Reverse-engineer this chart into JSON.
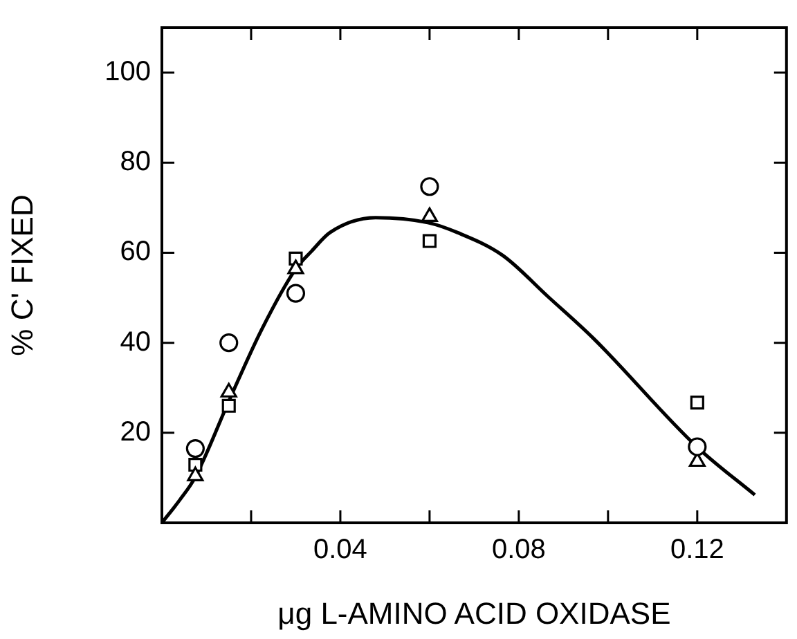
{
  "chart_data": {
    "type": "scatter",
    "xlabel": "μg L-AMINO ACID OXIDASE",
    "ylabel": "% C' FIXED",
    "xlim": [
      0,
      0.14
    ],
    "ylim": [
      0,
      110
    ],
    "xticks": [
      {
        "value": 0.02,
        "label": null
      },
      0.04,
      {
        "value": 0.06,
        "label": null
      },
      0.08,
      {
        "value": 0.1,
        "label": null
      },
      0.12
    ],
    "yticks": [
      20,
      40,
      60,
      80,
      100
    ],
    "grid": false,
    "legend": false,
    "series": [
      {
        "marker": "circle",
        "color": "#000000",
        "x": [
          0.0075,
          0.015,
          0.03,
          0.06,
          0.12
        ],
        "values": [
          16.5,
          40,
          51,
          74.7,
          16.9
        ]
      },
      {
        "marker": "triangle",
        "color": "#000000",
        "x": [
          0.0075,
          0.015,
          0.03,
          0.06,
          0.12
        ],
        "values": [
          10.4,
          29,
          56.4,
          68,
          13.6
        ]
      },
      {
        "marker": "square",
        "color": "#000000",
        "x": [
          0.0075,
          0.015,
          0.03,
          0.06,
          0.12
        ],
        "values": [
          12.9,
          26,
          58.7,
          62.6,
          26.7
        ]
      },
      {
        "type": "line",
        "marker": "none",
        "line_style": "solid",
        "color": "#000000",
        "x": [
          0,
          0.0041,
          0.0074,
          0.0153,
          0.0224,
          0.03,
          0.0336,
          0.0377,
          0.0479,
          0.0596,
          0.0662,
          0.0764,
          0.0866,
          0.0967,
          0.12,
          0.1329
        ],
        "values": [
          0,
          5.2,
          10,
          27.7,
          43,
          56.4,
          60.4,
          64.5,
          67.8,
          66.7,
          64.5,
          59.4,
          50.2,
          41,
          16.8,
          6.2
        ]
      }
    ]
  }
}
